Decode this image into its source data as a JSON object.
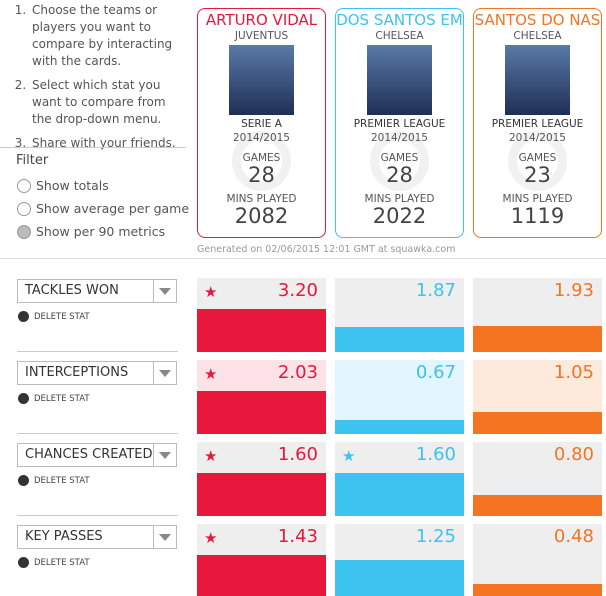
{
  "instructions": [
    "Choose the teams or players you want to compare by interacting with the cards.",
    "Select which stat you want to compare from the drop-down menu.",
    "Share with your friends."
  ],
  "filter": {
    "title": "Filter",
    "options": [
      "Show totals",
      "Show average per game",
      "Show per 90 metrics"
    ],
    "selected": 2
  },
  "cards": [
    {
      "name": "ARTURO VIDAL",
      "team": "JUVENTUS",
      "league": "SERIE A",
      "season": "2014/2015",
      "games_label": "GAMES",
      "games": "28",
      "mins_label": "MINS PLAYED",
      "mins": "2082",
      "color": "#e8173c",
      "tint": "#fde3e7"
    },
    {
      "name": "DOS SANTOS EM",
      "team": "CHELSEA",
      "league": "PREMIER LEAGUE",
      "season": "2014/2015",
      "games_label": "GAMES",
      "games": "28",
      "mins_label": "MINS PLAYED",
      "mins": "2022",
      "color": "#3cc3ef",
      "tint": "#e3f6fd"
    },
    {
      "name": "SANTOS DO NAS",
      "team": "CHELSEA",
      "league": "PREMIER LEAGUE",
      "season": "2014/2015",
      "games_label": "GAMES",
      "games": "23",
      "mins_label": "MINS PLAYED",
      "mins": "1119",
      "color": "#f47421",
      "tint": "#feeadd"
    }
  ],
  "generated": "Generated on 02/06/2015 12:01 GMT at squawka.com",
  "delete_label": "DELETE STAT",
  "stats": [
    {
      "name": "TACKLES WON",
      "values": [
        3.2,
        1.87,
        1.93
      ],
      "value_labels": [
        "3.20",
        "1.87",
        "1.93"
      ]
    },
    {
      "name": "INTERCEPTIONS",
      "values": [
        2.03,
        0.67,
        1.05
      ],
      "value_labels": [
        "2.03",
        "0.67",
        "1.05"
      ]
    },
    {
      "name": "CHANCES CREATED",
      "values": [
        1.6,
        1.6,
        0.8
      ],
      "value_labels": [
        "1.60",
        "1.60",
        "0.80"
      ]
    },
    {
      "name": "KEY PASSES",
      "values": [
        1.43,
        1.25,
        0.48
      ],
      "value_labels": [
        "1.43",
        "1.25",
        "0.48"
      ]
    }
  ]
}
